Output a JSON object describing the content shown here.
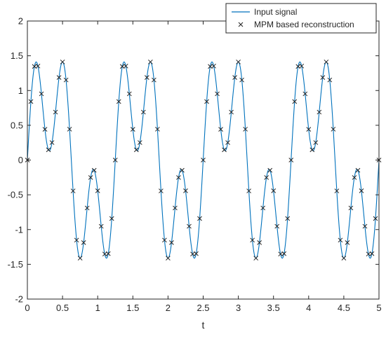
{
  "chart_data": {
    "type": "line",
    "title": "",
    "xlabel": "t",
    "ylabel": "",
    "xlim": [
      0,
      5
    ],
    "ylim": [
      -2,
      2
    ],
    "x_ticks": [
      0,
      0.5,
      1,
      1.5,
      2,
      2.5,
      3,
      3.5,
      4,
      4.5,
      5
    ],
    "x_tick_labels": [
      "0",
      "0.5",
      "1",
      "1.5",
      "2",
      "2.5",
      "3",
      "3.5",
      "4",
      "4.5",
      "5"
    ],
    "y_ticks": [
      -2,
      -1.5,
      -1,
      -0.5,
      0,
      0.5,
      1,
      1.5,
      2
    ],
    "y_tick_labels": [
      "-2",
      "-1.5",
      "-1",
      "-0.5",
      "0",
      "0.5",
      "1",
      "1.5",
      "2"
    ],
    "grid": false,
    "legend_position": "top-right",
    "series": [
      {
        "name": "Input signal",
        "style": "line",
        "color": "#0072BD",
        "formula": "sin(2*pi*t/1.25) + 0.866*sin(6*pi*t/1.25)",
        "x_range": [
          0,
          5
        ]
      },
      {
        "name": "MPM based reconstruction",
        "style": "marker-x",
        "color": "#222222",
        "x": [
          0,
          0.05,
          0.1,
          0.15,
          0.2,
          0.25,
          0.3,
          0.35,
          0.4,
          0.45,
          0.5,
          0.55,
          0.6,
          0.65,
          0.7,
          0.75,
          0.8,
          0.85,
          0.9,
          0.95,
          1,
          1.05,
          1.1,
          1.15,
          1.2,
          1.25,
          1.3,
          1.35,
          1.4,
          1.45,
          1.5,
          1.55,
          1.6,
          1.65,
          1.7,
          1.75,
          1.8,
          1.85,
          1.9,
          1.95,
          2,
          2.05,
          2.1,
          2.15,
          2.2,
          2.25,
          2.3,
          2.35,
          2.4,
          2.45,
          2.5,
          2.55,
          2.6,
          2.65,
          2.7,
          2.75,
          2.8,
          2.85,
          2.9,
          2.95,
          3,
          3.05,
          3.1,
          3.15,
          3.2,
          3.25,
          3.3,
          3.35,
          3.4,
          3.45,
          3.5,
          3.55,
          3.6,
          3.65,
          3.7,
          3.75,
          3.8,
          3.85,
          3.9,
          3.95,
          4,
          4.05,
          4.1,
          4.15,
          4.2,
          4.25,
          4.3,
          4.35,
          4.4,
          4.45,
          4.5,
          4.55,
          4.6,
          4.65,
          4.7,
          4.75,
          4.8,
          4.85,
          4.9,
          4.95,
          5
        ]
      }
    ]
  }
}
